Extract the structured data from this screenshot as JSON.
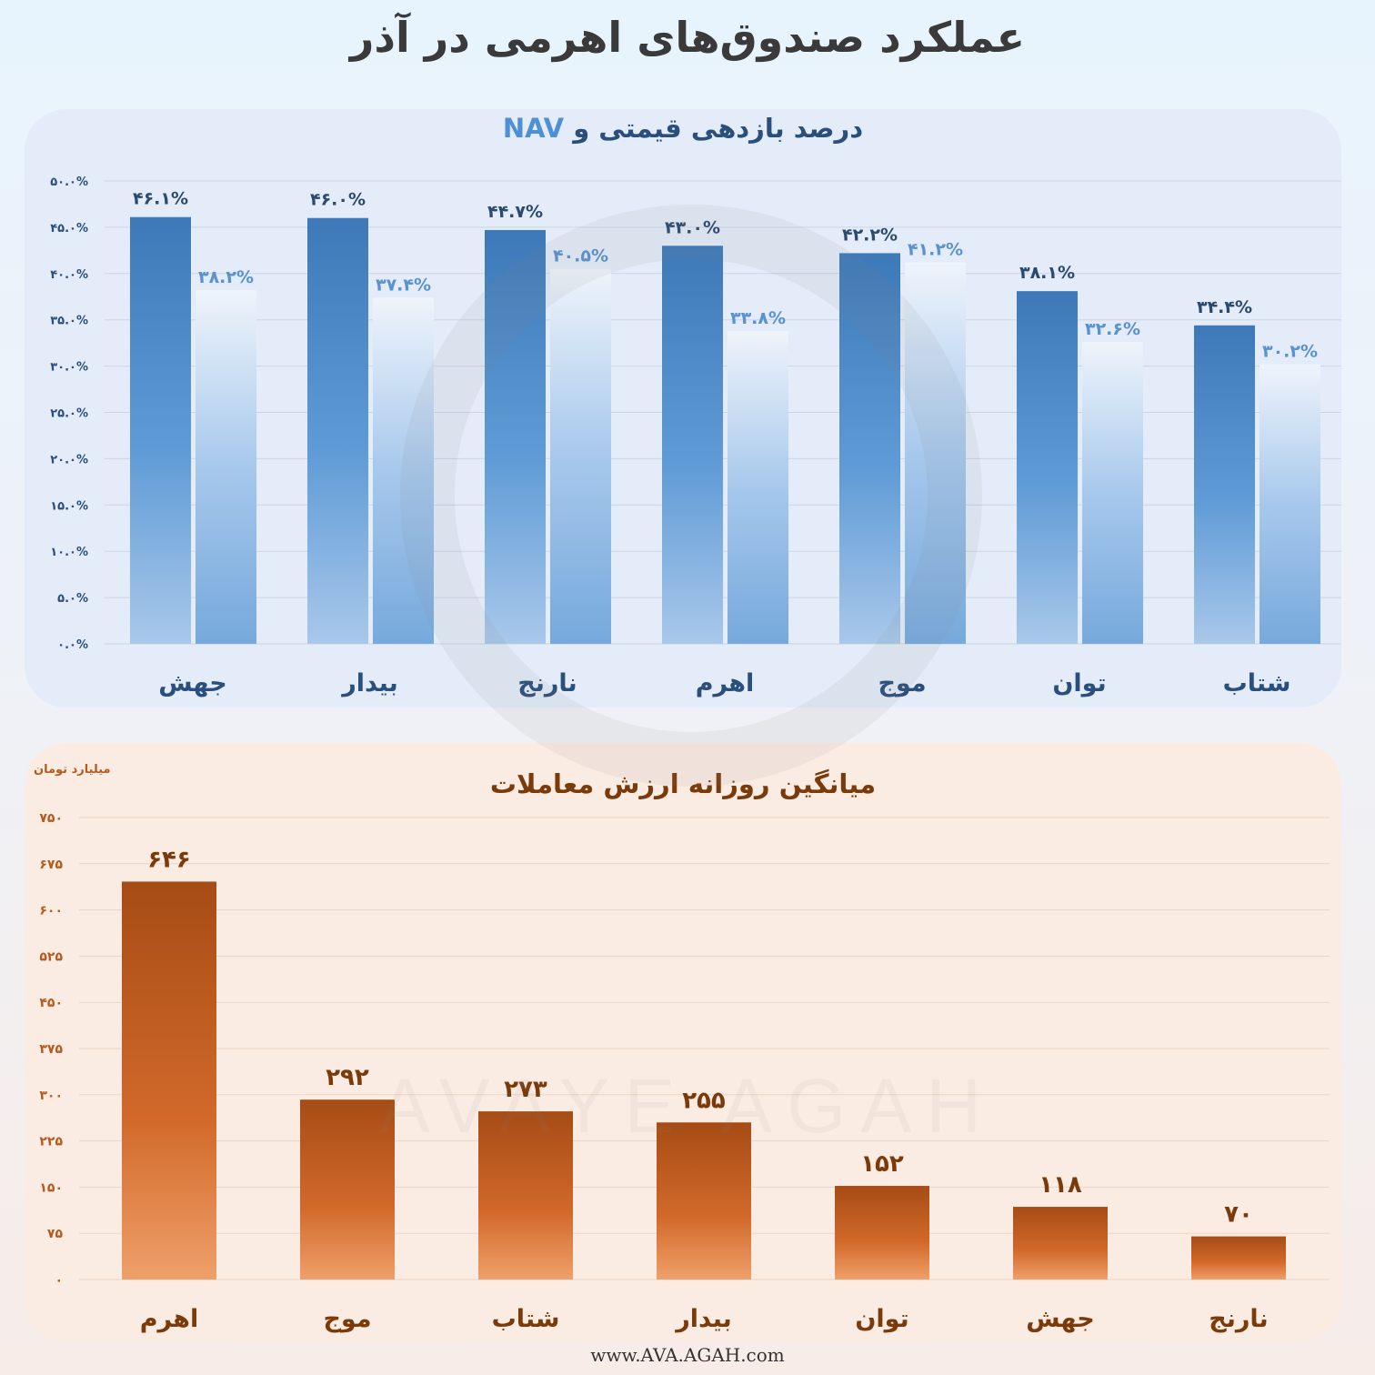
{
  "title": "عملکرد صندوق‌های اهرمی در آذر",
  "footer_url": "www.AVA.AGAH.com",
  "colors": {
    "price_bar": "#3d79b8",
    "nav_bar": "#76a9dc",
    "volume_bar": "#d2692b",
    "top_text": "#2b4f7c",
    "bottom_text": "#7a3a0a"
  },
  "watermark_text": "AVAYE AGAH",
  "chart_data": [
    {
      "type": "bar",
      "title_prefix": "درصد بازدهی قیمتی و ",
      "title_accent": "NAV",
      "categories": [
        "جهش",
        "بیدار",
        "نارنج",
        "اهرم",
        "موج",
        "توان",
        "شتاب"
      ],
      "series": [
        {
          "values": [
            46.1,
            46.0,
            44.7,
            43.0,
            42.2,
            38.1,
            34.4
          ],
          "labels": [
            "۴۶.۱%",
            "۴۶.۰%",
            "۴۴.۷%",
            "۴۳.۰%",
            "۴۲.۲%",
            "۳۸.۱%",
            "۳۴.۴%"
          ]
        },
        {
          "values": [
            38.2,
            37.4,
            40.5,
            33.8,
            41.2,
            32.6,
            30.2
          ],
          "labels": [
            "۳۸.۲%",
            "۳۷.۴%",
            "۴۰.۵%",
            "۳۳.۸%",
            "۴۱.۲%",
            "۳۲.۶%",
            "۳۰.۲%"
          ]
        }
      ],
      "ylim": [
        0,
        50
      ],
      "ticks": [
        0,
        5,
        10,
        15,
        20,
        25,
        30,
        35,
        40,
        45,
        50
      ],
      "tick_labels": [
        "۰.۰%",
        "۵.۰%",
        "۱۰.۰%",
        "۱۵.۰%",
        "۲۰.۰%",
        "۲۵.۰%",
        "۳۰.۰%",
        "۳۵.۰%",
        "۴۰.۰%",
        "۴۵.۰%",
        "۵۰.۰%"
      ],
      "grid": true
    },
    {
      "type": "bar",
      "title": "میانگین روزانه ارزش معاملات",
      "ylabel": "میلیارد تومان",
      "categories": [
        "اهرم",
        "موج",
        "شتاب",
        "بیدار",
        "توان",
        "جهش",
        "نارنج"
      ],
      "values": [
        646,
        292,
        273,
        255,
        152,
        118,
        70
      ],
      "labels": [
        "۶۴۶",
        "۲۹۲",
        "۲۷۳",
        "۲۵۵",
        "۱۵۲",
        "۱۱۸",
        "۷۰"
      ],
      "ylim": [
        0,
        750
      ],
      "ticks": [
        0,
        75,
        150,
        225,
        300,
        375,
        450,
        525,
        600,
        675,
        750
      ],
      "tick_labels": [
        "۰",
        "۷۵",
        "۱۵۰",
        "۲۲۵",
        "۳۰۰",
        "۳۷۵",
        "۴۵۰",
        "۵۲۵",
        "۶۰۰",
        "۶۷۵",
        "۷۵۰"
      ],
      "grid": true
    }
  ]
}
